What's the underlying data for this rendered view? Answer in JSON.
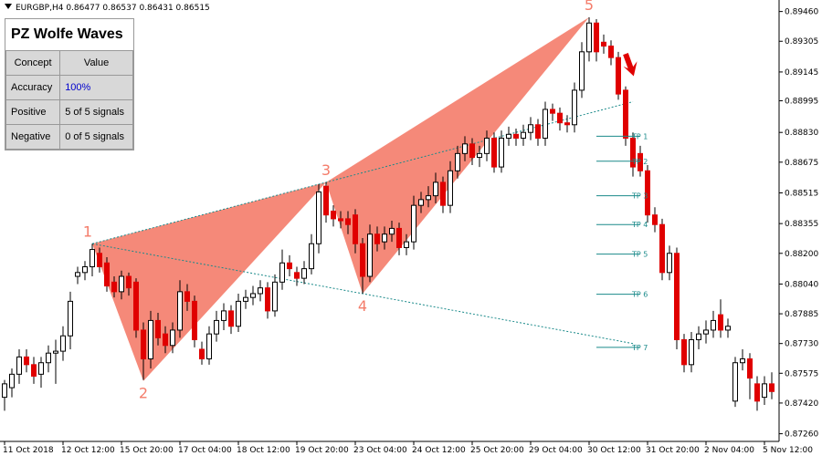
{
  "chart_data": {
    "type": "candlestick",
    "title": "EURGBP,H4  0.86477 0.86537 0.86431 0.86515",
    "colors": {
      "up": "#ffffff",
      "down": "#e00000",
      "wave": "#f47c6a",
      "tp": "#1a8a8a"
    },
    "ylim": [
      0.8722,
      0.8952
    ],
    "yticks": [
      {
        "value": 0.8946,
        "label": "0.89460"
      },
      {
        "value": 0.89305,
        "label": "0.89305"
      },
      {
        "value": 0.89145,
        "label": "0.89145"
      },
      {
        "value": 0.88995,
        "label": "0.88995"
      },
      {
        "value": 0.8883,
        "label": "0.88830"
      },
      {
        "value": 0.88675,
        "label": "0.88675"
      },
      {
        "value": 0.88515,
        "label": "0.88515"
      },
      {
        "value": 0.88355,
        "label": "0.88355"
      },
      {
        "value": 0.882,
        "label": "0.88200"
      },
      {
        "value": 0.8804,
        "label": "0.88040"
      },
      {
        "value": 0.87885,
        "label": "0.87885"
      },
      {
        "value": 0.8773,
        "label": "0.87730"
      },
      {
        "value": 0.87575,
        "label": "0.87575"
      },
      {
        "value": 0.8742,
        "label": "0.87420"
      },
      {
        "value": 0.8726,
        "label": "0.87260"
      }
    ],
    "categories": [
      "11 Oct 2018",
      null,
      null,
      null,
      null,
      null,
      null,
      null,
      "12 Oct 12:00",
      null,
      null,
      null,
      null,
      null,
      null,
      null,
      "15 Oct 20:00",
      null,
      null,
      null,
      null,
      null,
      null,
      null,
      "17 Oct 04:00",
      null,
      null,
      null,
      null,
      null,
      null,
      null,
      "18 Oct 12:00",
      null,
      null,
      null,
      null,
      null,
      null,
      null,
      "19 Oct 20:00",
      null,
      null,
      null,
      null,
      null,
      null,
      null,
      "23 Oct 04:00",
      null,
      null,
      null,
      null,
      null,
      null,
      null,
      "24 Oct 12:00",
      null,
      null,
      null,
      null,
      null,
      null,
      null,
      "25 Oct 20:00",
      null,
      null,
      null,
      null,
      null,
      null,
      null,
      "29 Oct 04:00",
      null,
      null,
      null,
      null,
      null,
      null,
      null,
      "30 Oct 12:00",
      null,
      null,
      null,
      null,
      null,
      null,
      null,
      "31 Oct 20:00",
      null,
      null,
      null,
      null,
      null,
      null,
      null,
      "2 Nov 04:00",
      null,
      null,
      null,
      null,
      null,
      null,
      null,
      "5 Nov 12:00",
      null
    ],
    "candles": [
      [
        0.8745,
        0.8754,
        0.8738,
        0.8752
      ],
      [
        0.875,
        0.876,
        0.8745,
        0.8757
      ],
      [
        0.8757,
        0.877,
        0.8752,
        0.8766
      ],
      [
        0.8766,
        0.877,
        0.8758,
        0.8762
      ],
      [
        0.8762,
        0.8766,
        0.8752,
        0.8756
      ],
      [
        0.8757,
        0.8766,
        0.875,
        0.8763
      ],
      [
        0.8763,
        0.8772,
        0.8758,
        0.8768
      ],
      [
        0.8768,
        0.8775,
        0.8752,
        0.8769
      ],
      [
        0.8769,
        0.8782,
        0.8764,
        0.8777
      ],
      [
        0.8777,
        0.88,
        0.877,
        0.8795
      ],
      [
        0.8808,
        0.8813,
        0.8804,
        0.881
      ],
      [
        0.881,
        0.8816,
        0.8806,
        0.8813
      ],
      [
        0.8813,
        0.8825,
        0.8808,
        0.8822
      ],
      [
        0.882,
        0.8823,
        0.881,
        0.8813
      ],
      [
        0.8815,
        0.8818,
        0.88,
        0.8803
      ],
      [
        0.8805,
        0.8808,
        0.8797,
        0.88
      ],
      [
        0.88,
        0.8811,
        0.8796,
        0.8808
      ],
      [
        0.8808,
        0.881,
        0.8798,
        0.8802
      ],
      [
        0.8805,
        0.8807,
        0.8776,
        0.878
      ],
      [
        0.878,
        0.8784,
        0.8754,
        0.8765
      ],
      [
        0.8765,
        0.879,
        0.876,
        0.8785
      ],
      [
        0.8785,
        0.8789,
        0.8772,
        0.8776
      ],
      [
        0.8778,
        0.8782,
        0.8768,
        0.8772
      ],
      [
        0.8772,
        0.8784,
        0.8768,
        0.878
      ],
      [
        0.878,
        0.8806,
        0.8776,
        0.88
      ],
      [
        0.88,
        0.8804,
        0.879,
        0.8795
      ],
      [
        0.8795,
        0.8798,
        0.8771,
        0.8775
      ],
      [
        0.877,
        0.8774,
        0.8762,
        0.8765
      ],
      [
        0.8765,
        0.8782,
        0.8762,
        0.8778
      ],
      [
        0.8778,
        0.879,
        0.8774,
        0.8785
      ],
      [
        0.8785,
        0.8794,
        0.878,
        0.879
      ],
      [
        0.879,
        0.8793,
        0.8778,
        0.8782
      ],
      [
        0.8782,
        0.8799,
        0.8779,
        0.8795
      ],
      [
        0.8795,
        0.8801,
        0.8791,
        0.8797
      ],
      [
        0.8797,
        0.8803,
        0.8793,
        0.8799
      ],
      [
        0.8799,
        0.8806,
        0.8795,
        0.8802
      ],
      [
        0.8802,
        0.8805,
        0.8786,
        0.879
      ],
      [
        0.879,
        0.8809,
        0.8787,
        0.8805
      ],
      [
        0.8805,
        0.8822,
        0.8801,
        0.8815
      ],
      [
        0.8815,
        0.8819,
        0.8808,
        0.8812
      ],
      [
        0.881,
        0.8813,
        0.8803,
        0.8807
      ],
      [
        0.8807,
        0.8816,
        0.8804,
        0.8812
      ],
      [
        0.8812,
        0.883,
        0.8809,
        0.8825
      ],
      [
        0.8825,
        0.8856,
        0.882,
        0.8852
      ],
      [
        0.8855,
        0.8857,
        0.8836,
        0.884
      ],
      [
        0.8842,
        0.8845,
        0.8834,
        0.8838
      ],
      [
        0.8838,
        0.8842,
        0.8833,
        0.8837
      ],
      [
        0.8838,
        0.8842,
        0.883,
        0.8835
      ],
      [
        0.884,
        0.8843,
        0.882,
        0.8825
      ],
      [
        0.8825,
        0.8828,
        0.8799,
        0.8808
      ],
      [
        0.8808,
        0.8835,
        0.8805,
        0.883
      ],
      [
        0.883,
        0.8834,
        0.8821,
        0.8825
      ],
      [
        0.8826,
        0.8834,
        0.8822,
        0.883
      ],
      [
        0.883,
        0.8837,
        0.8826,
        0.8833
      ],
      [
        0.8833,
        0.8836,
        0.8819,
        0.8823
      ],
      [
        0.8823,
        0.883,
        0.8819,
        0.8826
      ],
      [
        0.8826,
        0.885,
        0.8822,
        0.8845
      ],
      [
        0.8845,
        0.8852,
        0.8841,
        0.8848
      ],
      [
        0.8848,
        0.8855,
        0.8844,
        0.885
      ],
      [
        0.885,
        0.8862,
        0.8846,
        0.8857
      ],
      [
        0.8857,
        0.886,
        0.8841,
        0.8845
      ],
      [
        0.8845,
        0.8868,
        0.8841,
        0.8863
      ],
      [
        0.8863,
        0.8876,
        0.8859,
        0.8872
      ],
      [
        0.8872,
        0.8881,
        0.8868,
        0.8877
      ],
      [
        0.8877,
        0.888,
        0.8866,
        0.887
      ],
      [
        0.887,
        0.8876,
        0.8865,
        0.8872
      ],
      [
        0.8872,
        0.8884,
        0.8868,
        0.888
      ],
      [
        0.888,
        0.8883,
        0.8862,
        0.8865
      ],
      [
        0.8865,
        0.8884,
        0.8862,
        0.888
      ],
      [
        0.888,
        0.8886,
        0.8876,
        0.8882
      ],
      [
        0.8882,
        0.8885,
        0.8876,
        0.888
      ],
      [
        0.888,
        0.8887,
        0.8876,
        0.8883
      ],
      [
        0.8883,
        0.8891,
        0.8879,
        0.8887
      ],
      [
        0.8887,
        0.889,
        0.8876,
        0.888
      ],
      [
        0.888,
        0.8899,
        0.8876,
        0.8895
      ],
      [
        0.8895,
        0.8898,
        0.8889,
        0.8893
      ],
      [
        0.8893,
        0.8896,
        0.8884,
        0.8888
      ],
      [
        0.8888,
        0.8892,
        0.8883,
        0.8887
      ],
      [
        0.8887,
        0.8909,
        0.8883,
        0.8905
      ],
      [
        0.8905,
        0.893,
        0.8901,
        0.8925
      ],
      [
        0.8925,
        0.8943,
        0.892,
        0.894
      ],
      [
        0.894,
        0.8942,
        0.892,
        0.8925
      ],
      [
        0.893,
        0.8934,
        0.8924,
        0.8928
      ],
      [
        0.8928,
        0.8931,
        0.8918,
        0.8922
      ],
      [
        0.8922,
        0.8925,
        0.89,
        0.8903
      ],
      [
        0.8905,
        0.8907,
        0.8876,
        0.888
      ],
      [
        0.888,
        0.8883,
        0.886,
        0.8865
      ],
      [
        0.8872,
        0.8876,
        0.886,
        0.8863
      ],
      [
        0.8863,
        0.8866,
        0.8836,
        0.884
      ],
      [
        0.884,
        0.8844,
        0.8831,
        0.8835
      ],
      [
        0.8835,
        0.8838,
        0.8806,
        0.881
      ],
      [
        0.881,
        0.8824,
        0.8806,
        0.882
      ],
      [
        0.882,
        0.8823,
        0.877,
        0.8775
      ],
      [
        0.8775,
        0.8778,
        0.8758,
        0.8762
      ],
      [
        0.8762,
        0.8779,
        0.8758,
        0.8775
      ],
      [
        0.8775,
        0.8782,
        0.877,
        0.8778
      ],
      [
        0.8778,
        0.8785,
        0.8773,
        0.878
      ],
      [
        0.878,
        0.879,
        0.8776,
        0.8785
      ],
      [
        0.8788,
        0.8796,
        0.8776,
        0.878
      ],
      [
        0.878,
        0.8786,
        0.8776,
        0.8782
      ],
      [
        0.8743,
        0.8766,
        0.874,
        0.8763
      ],
      [
        0.8763,
        0.877,
        0.8759,
        0.8765
      ],
      [
        0.8765,
        0.8768,
        0.8744,
        0.8755
      ],
      [
        0.8752,
        0.8756,
        0.8738,
        0.8743
      ],
      [
        0.8745,
        0.8756,
        0.8741,
        0.8752
      ],
      [
        0.8752,
        0.8758,
        0.8744,
        0.8748
      ]
    ],
    "waves": [
      {
        "label": "1",
        "candle": 12,
        "value": 0.8825
      },
      {
        "label": "2",
        "candle": 19,
        "value": 0.87535
      },
      {
        "label": "3",
        "candle": 44,
        "value": 0.8857
      },
      {
        "label": "4",
        "candle": 49,
        "value": 0.8799
      },
      {
        "label": "5",
        "candle": 80,
        "value": 0.8943
      }
    ],
    "targets": [
      {
        "label": "TP 1",
        "value": 0.8881
      },
      {
        "label": "TP 2",
        "value": 0.8868
      },
      {
        "label": "TP 3",
        "value": 0.885
      },
      {
        "label": "TP 4",
        "value": 0.8835
      },
      {
        "label": "TP 5",
        "value": 0.88196
      },
      {
        "label": "TP 6",
        "value": 0.87987
      },
      {
        "label": "TP 7",
        "value": 0.8771
      }
    ],
    "panel": {
      "title": "PZ Wolfe Waves",
      "header": [
        "Concept",
        "Value"
      ],
      "rows": [
        [
          "Accuracy",
          "100%"
        ],
        [
          "Positive",
          "5 of 5 signals"
        ],
        [
          "Negative",
          "0 of 5 signals"
        ]
      ]
    }
  }
}
